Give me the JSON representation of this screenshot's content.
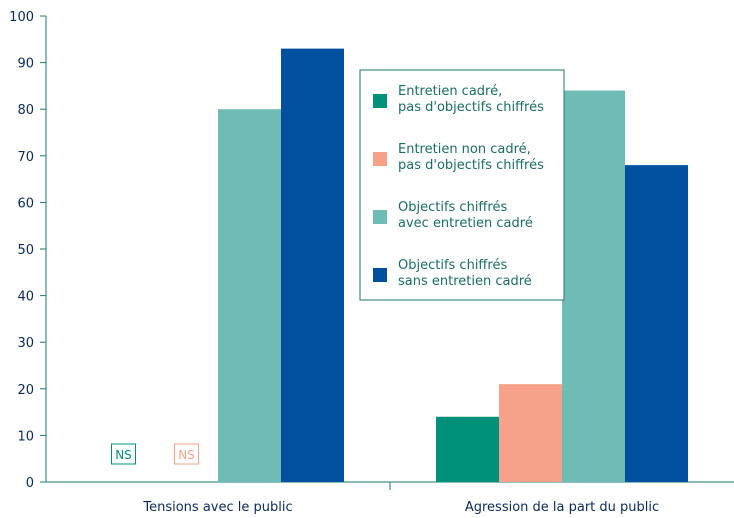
{
  "chart_data": {
    "type": "bar",
    "categories": [
      "Tensions avec le public",
      "Agression de la part du public"
    ],
    "series": [
      {
        "name": "Entretien cadré,\npas d'objectifs chiffrés",
        "color": "#00917a",
        "values": [
          null,
          14
        ]
      },
      {
        "name": "Entretien non cadré,\npas d'objectifs chiffrés",
        "color": "#f6a28a",
        "values": [
          null,
          21
        ]
      },
      {
        "name": "Objectifs chiffrés\navec entretien  cadré",
        "color": "#6fbcb6",
        "values": [
          80,
          84
        ]
      },
      {
        "name": "Objectifs chiffrés\nsans entretien cadré",
        "color": "#0050a0",
        "values": [
          93,
          68
        ]
      }
    ],
    "annotations": [
      {
        "category": 0,
        "series": 0,
        "text": "NS"
      },
      {
        "category": 0,
        "series": 1,
        "text": "NS"
      }
    ],
    "ylim": [
      0,
      100
    ],
    "yticks": [
      0,
      10,
      20,
      30,
      40,
      50,
      60,
      70,
      80,
      90,
      100
    ],
    "grid": false,
    "legend": "top-right",
    "axis_color": "#1a7a6e"
  }
}
